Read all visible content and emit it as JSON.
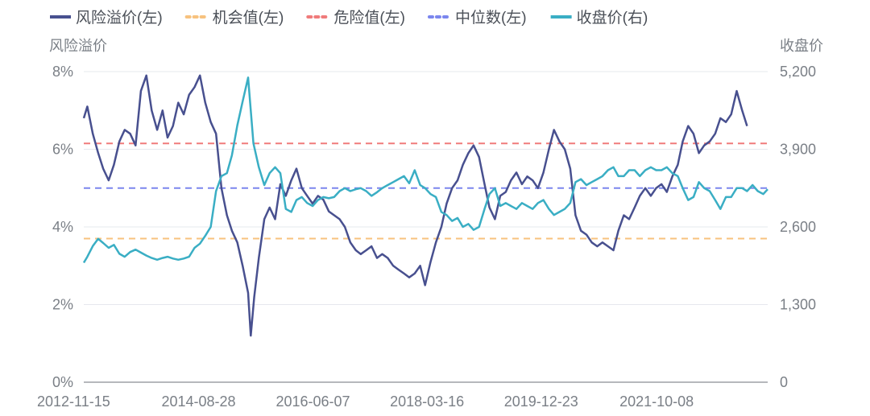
{
  "chart_data": {
    "type": "line",
    "legend": {
      "position": "top-left",
      "items": [
        {
          "name": "风险溢价(左)",
          "color": "#48508f",
          "style": "solid"
        },
        {
          "name": "机会值(左)",
          "color": "#f7c27e",
          "style": "dashed"
        },
        {
          "name": "危险值(左)",
          "color": "#f07b7b",
          "style": "dashed"
        },
        {
          "name": "中位数(左)",
          "color": "#7b86ee",
          "style": "dashed"
        },
        {
          "name": "收盘价(右)",
          "color": "#3aaec4",
          "style": "solid"
        }
      ]
    },
    "y_left": {
      "title": "风险溢价",
      "range": [
        0,
        8
      ],
      "ticks": [
        0,
        2,
        4,
        6,
        8
      ],
      "tick_labels": [
        "0%",
        "2%",
        "4%",
        "6%",
        "8%"
      ]
    },
    "y_right": {
      "title": "收盘价",
      "range": [
        0,
        5200
      ],
      "ticks": [
        0,
        1300,
        2600,
        3900,
        5200
      ],
      "tick_labels": [
        "0",
        "1,300",
        "2,600",
        "3,900",
        "5,200"
      ]
    },
    "x_ticks": [
      "2012-11-15",
      "2014-08-28",
      "2016-06-07",
      "2018-03-16",
      "2019-12-23",
      "2021-10-08"
    ],
    "x_range": [
      "2012-11-15",
      "2023-06-30"
    ],
    "grid": "horizontal",
    "reference_lines": [
      {
        "name": "机会值(左)",
        "value": 3.7,
        "color": "#f7c27e"
      },
      {
        "name": "危险值(左)",
        "value": 6.15,
        "color": "#f07b7b"
      },
      {
        "name": "中位数(左)",
        "value": 5.0,
        "color": "#7b86ee"
      }
    ],
    "series": [
      {
        "name": "风险溢价(左)",
        "axis": "left",
        "color": "#48508f",
        "points": [
          [
            "2012-11-15",
            6.8
          ],
          [
            "2012-12-05",
            7.1
          ],
          [
            "2013-01-05",
            6.4
          ],
          [
            "2013-02-05",
            5.9
          ],
          [
            "2013-03-05",
            5.5
          ],
          [
            "2013-04-05",
            5.2
          ],
          [
            "2013-05-05",
            5.6
          ],
          [
            "2013-06-05",
            6.2
          ],
          [
            "2013-07-05",
            6.5
          ],
          [
            "2013-08-05",
            6.4
          ],
          [
            "2013-09-05",
            6.1
          ],
          [
            "2013-10-05",
            7.5
          ],
          [
            "2013-11-05",
            7.9
          ],
          [
            "2013-12-05",
            7.0
          ],
          [
            "2014-01-05",
            6.5
          ],
          [
            "2014-02-05",
            7.0
          ],
          [
            "2014-03-05",
            6.3
          ],
          [
            "2014-04-05",
            6.6
          ],
          [
            "2014-05-05",
            7.2
          ],
          [
            "2014-06-05",
            6.9
          ],
          [
            "2014-07-05",
            7.4
          ],
          [
            "2014-08-05",
            7.6
          ],
          [
            "2014-09-05",
            7.9
          ],
          [
            "2014-10-05",
            7.2
          ],
          [
            "2014-11-05",
            6.7
          ],
          [
            "2014-12-05",
            6.4
          ],
          [
            "2015-01-05",
            5.0
          ],
          [
            "2015-02-05",
            4.3
          ],
          [
            "2015-03-05",
            3.9
          ],
          [
            "2015-04-05",
            3.6
          ],
          [
            "2015-05-05",
            3.0
          ],
          [
            "2015-06-05",
            2.3
          ],
          [
            "2015-06-20",
            1.2
          ],
          [
            "2015-07-10",
            2.2
          ],
          [
            "2015-08-05",
            3.2
          ],
          [
            "2015-09-05",
            4.2
          ],
          [
            "2015-10-05",
            4.5
          ],
          [
            "2015-11-05",
            4.2
          ],
          [
            "2015-12-05",
            5.1
          ],
          [
            "2016-01-05",
            4.8
          ],
          [
            "2016-02-05",
            5.2
          ],
          [
            "2016-03-05",
            5.5
          ],
          [
            "2016-04-05",
            5.0
          ],
          [
            "2016-05-05",
            4.8
          ],
          [
            "2016-06-05",
            4.6
          ],
          [
            "2016-07-05",
            4.8
          ],
          [
            "2016-08-05",
            4.7
          ],
          [
            "2016-09-05",
            4.4
          ],
          [
            "2016-10-05",
            4.3
          ],
          [
            "2016-11-05",
            4.2
          ],
          [
            "2016-12-05",
            4.0
          ],
          [
            "2017-01-05",
            3.6
          ],
          [
            "2017-02-05",
            3.4
          ],
          [
            "2017-03-05",
            3.3
          ],
          [
            "2017-04-05",
            3.4
          ],
          [
            "2017-05-05",
            3.5
          ],
          [
            "2017-06-05",
            3.2
          ],
          [
            "2017-07-05",
            3.3
          ],
          [
            "2017-08-05",
            3.2
          ],
          [
            "2017-09-05",
            3.0
          ],
          [
            "2017-10-05",
            2.9
          ],
          [
            "2017-11-05",
            2.8
          ],
          [
            "2017-12-05",
            2.7
          ],
          [
            "2018-01-05",
            2.8
          ],
          [
            "2018-02-05",
            3.0
          ],
          [
            "2018-03-05",
            2.5
          ],
          [
            "2018-04-05",
            3.1
          ],
          [
            "2018-05-05",
            3.6
          ],
          [
            "2018-06-05",
            4.0
          ],
          [
            "2018-07-05",
            4.6
          ],
          [
            "2018-08-05",
            5.0
          ],
          [
            "2018-09-05",
            5.2
          ],
          [
            "2018-10-05",
            5.6
          ],
          [
            "2018-11-05",
            5.9
          ],
          [
            "2018-12-05",
            6.1
          ],
          [
            "2019-01-05",
            5.8
          ],
          [
            "2019-02-05",
            5.1
          ],
          [
            "2019-03-05",
            4.5
          ],
          [
            "2019-04-05",
            4.2
          ],
          [
            "2019-05-05",
            4.8
          ],
          [
            "2019-06-05",
            4.9
          ],
          [
            "2019-07-05",
            5.2
          ],
          [
            "2019-08-05",
            5.4
          ],
          [
            "2019-09-05",
            5.1
          ],
          [
            "2019-10-05",
            5.3
          ],
          [
            "2019-11-05",
            5.2
          ],
          [
            "2019-12-05",
            5.0
          ],
          [
            "2020-01-05",
            5.4
          ],
          [
            "2020-02-05",
            6.0
          ],
          [
            "2020-03-05",
            6.5
          ],
          [
            "2020-04-05",
            6.2
          ],
          [
            "2020-05-05",
            6.0
          ],
          [
            "2020-06-05",
            5.5
          ],
          [
            "2020-07-05",
            4.3
          ],
          [
            "2020-08-05",
            3.9
          ],
          [
            "2020-09-05",
            3.8
          ],
          [
            "2020-10-05",
            3.6
          ],
          [
            "2020-11-05",
            3.5
          ],
          [
            "2020-12-05",
            3.6
          ],
          [
            "2021-01-05",
            3.5
          ],
          [
            "2021-02-05",
            3.4
          ],
          [
            "2021-03-05",
            3.9
          ],
          [
            "2021-04-05",
            4.3
          ],
          [
            "2021-05-05",
            4.2
          ],
          [
            "2021-06-05",
            4.5
          ],
          [
            "2021-07-05",
            4.8
          ],
          [
            "2021-08-05",
            5.0
          ],
          [
            "2021-09-05",
            4.8
          ],
          [
            "2021-10-05",
            5.0
          ],
          [
            "2021-11-05",
            5.1
          ],
          [
            "2021-12-05",
            4.9
          ],
          [
            "2022-01-05",
            5.3
          ],
          [
            "2022-02-05",
            5.6
          ],
          [
            "2022-03-05",
            6.2
          ],
          [
            "2022-04-05",
            6.6
          ],
          [
            "2022-05-05",
            6.4
          ],
          [
            "2022-06-05",
            5.9
          ],
          [
            "2022-07-05",
            6.1
          ],
          [
            "2022-08-05",
            6.2
          ],
          [
            "2022-09-05",
            6.4
          ],
          [
            "2022-10-05",
            6.8
          ],
          [
            "2022-11-05",
            6.7
          ],
          [
            "2022-12-05",
            6.9
          ],
          [
            "2023-01-05",
            7.5
          ],
          [
            "2023-02-05",
            7.0
          ],
          [
            "2023-03-05",
            6.6
          ]
        ]
      },
      {
        "name": "收盘价(右)",
        "axis": "right",
        "color": "#3aaec4",
        "points": [
          [
            "2012-11-15",
            2000
          ],
          [
            "2012-12-05",
            2100
          ],
          [
            "2013-01-05",
            2280
          ],
          [
            "2013-02-05",
            2400
          ],
          [
            "2013-03-05",
            2330
          ],
          [
            "2013-04-05",
            2250
          ],
          [
            "2013-05-05",
            2300
          ],
          [
            "2013-06-05",
            2150
          ],
          [
            "2013-07-05",
            2100
          ],
          [
            "2013-08-05",
            2180
          ],
          [
            "2013-09-05",
            2220
          ],
          [
            "2013-10-05",
            2170
          ],
          [
            "2013-11-05",
            2120
          ],
          [
            "2013-12-05",
            2080
          ],
          [
            "2014-01-05",
            2050
          ],
          [
            "2014-02-05",
            2080
          ],
          [
            "2014-03-05",
            2100
          ],
          [
            "2014-04-05",
            2070
          ],
          [
            "2014-05-05",
            2050
          ],
          [
            "2014-06-05",
            2070
          ],
          [
            "2014-07-05",
            2100
          ],
          [
            "2014-08-05",
            2250
          ],
          [
            "2014-09-05",
            2320
          ],
          [
            "2014-10-05",
            2450
          ],
          [
            "2014-11-05",
            2600
          ],
          [
            "2014-12-05",
            3200
          ],
          [
            "2015-01-05",
            3450
          ],
          [
            "2015-02-05",
            3500
          ],
          [
            "2015-03-05",
            3800
          ],
          [
            "2015-04-05",
            4300
          ],
          [
            "2015-05-05",
            4700
          ],
          [
            "2015-06-05",
            5100
          ],
          [
            "2015-07-05",
            4000
          ],
          [
            "2015-08-05",
            3600
          ],
          [
            "2015-09-05",
            3300
          ],
          [
            "2015-10-05",
            3500
          ],
          [
            "2015-11-05",
            3600
          ],
          [
            "2015-12-05",
            3500
          ],
          [
            "2016-01-05",
            2900
          ],
          [
            "2016-02-05",
            2850
          ],
          [
            "2016-03-05",
            3050
          ],
          [
            "2016-04-05",
            3100
          ],
          [
            "2016-05-05",
            3000
          ],
          [
            "2016-06-05",
            2950
          ],
          [
            "2016-07-05",
            3050
          ],
          [
            "2016-08-05",
            3100
          ],
          [
            "2016-09-05",
            3080
          ],
          [
            "2016-10-05",
            3100
          ],
          [
            "2016-11-05",
            3200
          ],
          [
            "2016-12-05",
            3250
          ],
          [
            "2017-01-05",
            3200
          ],
          [
            "2017-02-05",
            3230
          ],
          [
            "2017-03-05",
            3250
          ],
          [
            "2017-04-05",
            3200
          ],
          [
            "2017-05-05",
            3120
          ],
          [
            "2017-06-05",
            3180
          ],
          [
            "2017-07-05",
            3250
          ],
          [
            "2017-08-05",
            3300
          ],
          [
            "2017-09-05",
            3350
          ],
          [
            "2017-10-05",
            3400
          ],
          [
            "2017-11-05",
            3450
          ],
          [
            "2017-12-05",
            3330
          ],
          [
            "2018-01-05",
            3550
          ],
          [
            "2018-02-05",
            3300
          ],
          [
            "2018-03-05",
            3250
          ],
          [
            "2018-04-05",
            3150
          ],
          [
            "2018-05-05",
            3100
          ],
          [
            "2018-06-05",
            2850
          ],
          [
            "2018-07-05",
            2800
          ],
          [
            "2018-08-05",
            2700
          ],
          [
            "2018-09-05",
            2750
          ],
          [
            "2018-10-05",
            2600
          ],
          [
            "2018-11-05",
            2650
          ],
          [
            "2018-12-05",
            2550
          ],
          [
            "2019-01-05",
            2600
          ],
          [
            "2019-02-05",
            2900
          ],
          [
            "2019-03-05",
            3150
          ],
          [
            "2019-04-05",
            3250
          ],
          [
            "2019-05-05",
            2950
          ],
          [
            "2019-06-05",
            3000
          ],
          [
            "2019-07-05",
            2950
          ],
          [
            "2019-08-05",
            2900
          ],
          [
            "2019-09-05",
            3000
          ],
          [
            "2019-10-05",
            2950
          ],
          [
            "2019-11-05",
            2900
          ],
          [
            "2019-12-05",
            3000
          ],
          [
            "2020-01-05",
            3050
          ],
          [
            "2020-02-05",
            2900
          ],
          [
            "2020-03-05",
            2800
          ],
          [
            "2020-04-05",
            2850
          ],
          [
            "2020-05-05",
            2900
          ],
          [
            "2020-06-05",
            3000
          ],
          [
            "2020-07-05",
            3350
          ],
          [
            "2020-08-05",
            3400
          ],
          [
            "2020-09-05",
            3300
          ],
          [
            "2020-10-05",
            3350
          ],
          [
            "2020-11-05",
            3400
          ],
          [
            "2020-12-05",
            3450
          ],
          [
            "2021-01-05",
            3550
          ],
          [
            "2021-02-05",
            3600
          ],
          [
            "2021-03-05",
            3450
          ],
          [
            "2021-04-05",
            3450
          ],
          [
            "2021-05-05",
            3550
          ],
          [
            "2021-06-05",
            3550
          ],
          [
            "2021-07-05",
            3450
          ],
          [
            "2021-08-05",
            3550
          ],
          [
            "2021-09-05",
            3600
          ],
          [
            "2021-10-05",
            3550
          ],
          [
            "2021-11-05",
            3550
          ],
          [
            "2021-12-05",
            3600
          ],
          [
            "2022-01-05",
            3500
          ],
          [
            "2022-02-05",
            3450
          ],
          [
            "2022-03-05",
            3250
          ],
          [
            "2022-04-05",
            3050
          ],
          [
            "2022-05-05",
            3100
          ],
          [
            "2022-06-05",
            3350
          ],
          [
            "2022-07-05",
            3250
          ],
          [
            "2022-08-05",
            3200
          ],
          [
            "2022-09-05",
            3050
          ],
          [
            "2022-10-05",
            2900
          ],
          [
            "2022-11-05",
            3100
          ],
          [
            "2022-12-05",
            3100
          ],
          [
            "2023-01-05",
            3250
          ],
          [
            "2023-02-05",
            3250
          ],
          [
            "2023-03-05",
            3200
          ],
          [
            "2023-04-05",
            3300
          ],
          [
            "2023-05-05",
            3200
          ],
          [
            "2023-06-05",
            3150
          ],
          [
            "2023-06-30",
            3230
          ]
        ]
      }
    ]
  }
}
